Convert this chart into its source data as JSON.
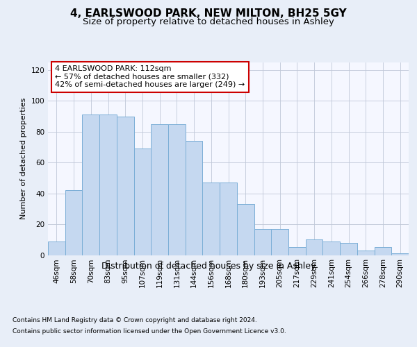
{
  "title1": "4, EARLSWOOD PARK, NEW MILTON, BH25 5GY",
  "title2": "Size of property relative to detached houses in Ashley",
  "xlabel": "Distribution of detached houses by size in Ashley",
  "ylabel": "Number of detached properties",
  "categories": [
    "46sqm",
    "58sqm",
    "70sqm",
    "83sqm",
    "95sqm",
    "107sqm",
    "119sqm",
    "131sqm",
    "144sqm",
    "156sqm",
    "168sqm",
    "180sqm",
    "193sqm",
    "205sqm",
    "217sqm",
    "229sqm",
    "241sqm",
    "254sqm",
    "266sqm",
    "278sqm",
    "290sqm"
  ],
  "values": [
    9,
    42,
    91,
    91,
    90,
    69,
    85,
    85,
    74,
    47,
    47,
    33,
    17,
    17,
    5,
    10,
    9,
    8,
    3,
    5,
    1
  ],
  "bar_color": "#c5d8f0",
  "bar_edgecolor": "#7aaed6",
  "annotation_box_text": "4 EARLSWOOD PARK: 112sqm\n← 57% of detached houses are smaller (332)\n42% of semi-detached houses are larger (249) →",
  "annotation_box_color": "#ffffff",
  "annotation_box_edgecolor": "#cc0000",
  "ylim": [
    0,
    125
  ],
  "yticks": [
    0,
    20,
    40,
    60,
    80,
    100,
    120
  ],
  "footnote1": "Contains HM Land Registry data © Crown copyright and database right 2024.",
  "footnote2": "Contains public sector information licensed under the Open Government Licence v3.0.",
  "bg_color": "#e8eef8",
  "plot_bg_color": "#f5f7ff",
  "title1_fontsize": 11,
  "title2_fontsize": 9.5,
  "xlabel_fontsize": 9,
  "ylabel_fontsize": 8,
  "tick_fontsize": 7.5,
  "footnote_fontsize": 6.5,
  "annotation_fontsize": 8,
  "vline_color": "#444444"
}
